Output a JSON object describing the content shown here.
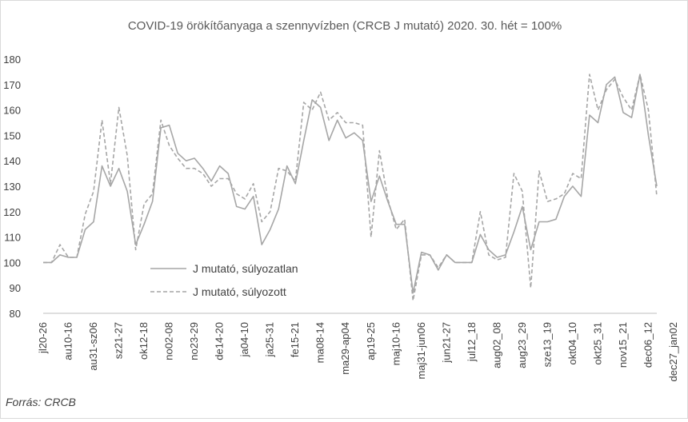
{
  "chart_data": {
    "type": "line",
    "title": "COVID-19 örökítőanyaga a szennyvízben (CRCB J mutató) 2020. 30. hét = 100%",
    "source": "Forrás: CRCB",
    "xlabel": "",
    "ylabel": "",
    "ylim": [
      80,
      180
    ],
    "yticks": [
      80,
      90,
      100,
      110,
      120,
      130,
      140,
      150,
      160,
      170,
      180
    ],
    "grid": false,
    "legend_position": "center-left",
    "x_tick_labels": [
      "jl20-26",
      "au10-16",
      "au31-sz06",
      "sz21-27",
      "ok12-18",
      "no02-08",
      "no23-29",
      "de14-20",
      "ja04-10",
      "ja25-31",
      "fe15-21",
      "ma08-14",
      "ma29-ap04",
      "ap19-25",
      "maj10-16",
      "maj31-jun06",
      "jun21-27",
      "jul12_18",
      "aug02_08",
      "aug23_29",
      "sze13_19",
      "okt04_10",
      "okt25_31",
      "nov15_21",
      "dec06_12",
      "dec27_jan02"
    ],
    "series": [
      {
        "name": "J mutató, súlyozatlan",
        "color": "#a6a6a6",
        "dash": "solid",
        "values": [
          100,
          100,
          103,
          102,
          102,
          113,
          116,
          138,
          130,
          137,
          128,
          107,
          115,
          124,
          153,
          154,
          143,
          140,
          141,
          137,
          132,
          138,
          135,
          122,
          121,
          126,
          107,
          113,
          121,
          138,
          131,
          148,
          164,
          161,
          148,
          156,
          149,
          151,
          148,
          124,
          134,
          124,
          115,
          115,
          88,
          104,
          103,
          97,
          103,
          100,
          100,
          100,
          111,
          105,
          102,
          103,
          112,
          122,
          105,
          116,
          116,
          117,
          126,
          130,
          126,
          158,
          155,
          170,
          173,
          159,
          157,
          174,
          150,
          130
        ]
      },
      {
        "name": "J mutató, súlyozott",
        "color": "#a6a6a6",
        "dash": "dashed",
        "values": [
          100,
          100,
          107,
          102,
          102,
          119,
          128,
          156,
          131,
          161,
          142,
          105,
          123,
          127,
          156,
          146,
          141,
          137,
          137,
          135,
          130,
          133,
          133,
          127,
          125,
          131,
          116,
          120,
          137,
          136,
          132,
          163,
          160,
          167,
          156,
          159,
          155,
          155,
          154,
          110,
          144,
          125,
          113,
          117,
          85,
          103,
          103,
          98,
          103,
          100,
          100,
          100,
          120,
          103,
          101,
          102,
          135,
          128,
          90,
          136,
          124,
          125,
          127,
          135,
          133,
          174,
          160,
          168,
          172,
          165,
          160,
          174,
          160,
          126
        ]
      }
    ]
  }
}
